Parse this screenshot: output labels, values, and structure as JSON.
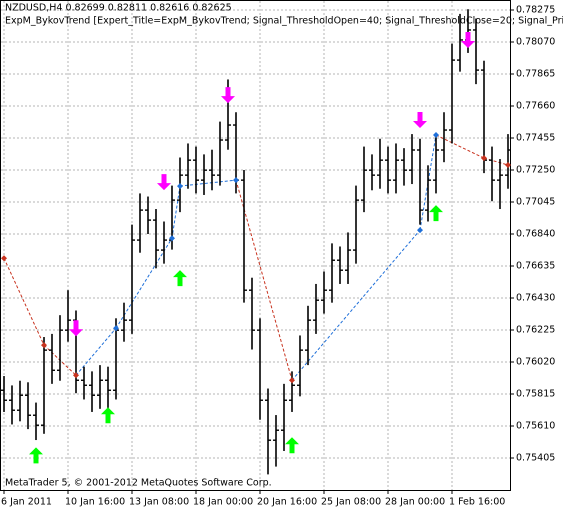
{
  "chart_data": {
    "type": "ohlc",
    "title": "NZDUSD,H4  0.82699 0.82811 0.82616 0.82625",
    "subtitle": "ExpM_BykovTrend [Expert_Title=ExpM_BykovTrend; Signal_ThresholdOpen=40; Signal_ThresholdClose=20; Signal_Pric",
    "footer": "MetaTrader 5, © 2001-2012 MetaQuotes Software Corp.",
    "categories": [
      "6 Jan 2011",
      null,
      null,
      null,
      null,
      null,
      null,
      null,
      "10 Jan 16:00",
      null,
      null,
      null,
      null,
      null,
      null,
      null,
      "13 Jan 08:00",
      null,
      null,
      null,
      null,
      null,
      null,
      null,
      "18 Jan 00:00",
      null,
      null,
      null,
      null,
      null,
      null,
      null,
      "20 Jan 16:00",
      null,
      null,
      null,
      null,
      null,
      null,
      null,
      "25 Jan 08:00",
      null,
      null,
      null,
      null,
      null,
      null,
      null,
      "28 Jan 00:00",
      null,
      null,
      null,
      null,
      null,
      null,
      null,
      "1 Feb 16:00",
      null,
      null,
      null,
      null,
      null,
      null,
      null
    ],
    "open": [
      0.75839,
      0.75775,
      0.75711,
      0.75807,
      0.75679,
      0.75615,
      0.76096,
      0.75967,
      0.76224,
      0.76288,
      0.75903,
      0.75871,
      0.75807,
      0.75903,
      0.75839,
      0.76224,
      0.76288,
      0.76801,
      0.76993,
      0.76929,
      0.76737,
      0.76801,
      0.77057,
      0.77217,
      0.77313,
      0.77185,
      0.77249,
      0.77217,
      0.77442,
      0.77538,
      0.77185,
      0.7648,
      0.76224,
      0.75775,
      0.75519,
      0.75583,
      0.75775,
      0.75871,
      0.76096,
      0.76288,
      0.76416,
      0.7648,
      0.76672,
      0.76608,
      0.76737,
      0.77057,
      0.77249,
      0.77217,
      0.77313,
      0.77185,
      0.77313,
      0.77249,
      0.77378,
      0.76993,
      0.77185,
      0.77378,
      0.77506,
      0.77954,
      0.78083,
      0.78147,
      0.7789,
      0.77313,
      0.77185,
      0.77217
    ],
    "high": [
      0.7593,
      0.7587,
      0.759,
      0.7589,
      0.7576,
      0.7618,
      0.762,
      0.7632,
      0.7648,
      0.7635,
      0.7599,
      0.7596,
      0.76,
      0.7599,
      0.763,
      0.764,
      0.769,
      0.771,
      0.7708,
      0.77,
      0.7692,
      0.7715,
      0.7733,
      0.7742,
      0.774,
      0.7735,
      0.7738,
      0.7756,
      0.7783,
      0.7762,
      0.7725,
      0.7656,
      0.763,
      0.7585,
      0.7568,
      0.7588,
      0.7596,
      0.7619,
      0.7638,
      0.7652,
      0.766,
      0.7678,
      0.7676,
      0.7685,
      0.7715,
      0.774,
      0.7735,
      0.7745,
      0.774,
      0.7742,
      0.7739,
      0.7748,
      0.7745,
      0.7728,
      0.7747,
      0.7762,
      0.7806,
      0.7825,
      0.7828,
      0.7822,
      0.7795,
      0.774,
      0.7732,
      0.7748
    ],
    "low": [
      0.757,
      0.7562,
      0.7564,
      0.7559,
      0.7552,
      0.7556,
      0.7588,
      0.759,
      0.7615,
      0.7582,
      0.7578,
      0.757,
      0.7572,
      0.7565,
      0.7578,
      0.7615,
      0.762,
      0.7672,
      0.7684,
      0.7662,
      0.7665,
      0.7674,
      0.7698,
      0.7713,
      0.771,
      0.7709,
      0.7712,
      0.7715,
      0.7738,
      0.771,
      0.764,
      0.761,
      0.7565,
      0.753,
      0.7535,
      0.7545,
      0.757,
      0.758,
      0.76,
      0.762,
      0.7633,
      0.764,
      0.7652,
      0.7652,
      0.7665,
      0.7698,
      0.7712,
      0.7713,
      0.771,
      0.771,
      0.7715,
      0.7716,
      0.769,
      0.7692,
      0.771,
      0.773,
      0.7742,
      0.7788,
      0.78,
      0.778,
      0.7723,
      0.7705,
      0.77,
      0.7713
    ],
    "close": [
      0.75775,
      0.75711,
      0.75807,
      0.75679,
      0.75615,
      0.76096,
      0.75967,
      0.76224,
      0.76288,
      0.75903,
      0.75871,
      0.75807,
      0.75903,
      0.75839,
      0.76224,
      0.76288,
      0.76801,
      0.76993,
      0.76929,
      0.76737,
      0.76801,
      0.77057,
      0.77217,
      0.77313,
      0.77185,
      0.77249,
      0.77217,
      0.77442,
      0.77538,
      0.77185,
      0.7648,
      0.76224,
      0.75775,
      0.75519,
      0.75583,
      0.75775,
      0.75871,
      0.76096,
      0.76288,
      0.76416,
      0.7648,
      0.76672,
      0.76608,
      0.76737,
      0.77057,
      0.77249,
      0.77217,
      0.77313,
      0.77185,
      0.77313,
      0.77249,
      0.77378,
      0.76993,
      0.77185,
      0.77378,
      0.77506,
      0.77954,
      0.78083,
      0.78147,
      0.7789,
      0.77313,
      0.77185,
      0.77217,
      0.77378
    ],
    "bar_color": "#000000",
    "buy_arrows": {
      "color": "#00ff00",
      "index": [
        4,
        13,
        22,
        36,
        54
      ],
      "values": [
        0.75422,
        0.75679,
        0.76557,
        0.75487,
        0.76974
      ]
    },
    "sell_arrows": {
      "color": "#ff00ff",
      "index": [
        9,
        20,
        28,
        52,
        58
      ],
      "values": [
        0.76236,
        0.77172,
        0.7773,
        0.7757,
        0.78083
      ]
    },
    "zigzag": {
      "up_color": "#1e6fd9",
      "down_color": "#c8321e",
      "index": [
        0,
        5,
        9,
        14,
        21,
        22,
        29,
        36,
        52,
        54,
        60,
        63
      ],
      "values": [
        0.76685,
        0.76128,
        0.75935,
        0.76236,
        0.76813,
        0.77147,
        0.77185,
        0.75903,
        0.76865,
        0.77474,
        0.77326,
        0.77282
      ]
    },
    "ylim": [
      0.752,
      0.78339
    ],
    "yticks": [
      0.78275,
      {
        "value": 0.7807,
        "label": "0.78070"
      },
      0.77865,
      {
        "value": 0.7766,
        "label": "0.77660"
      },
      0.77455,
      {
        "value": 0.7725,
        "label": "0.77250"
      },
      0.77045,
      {
        "value": 0.7684,
        "label": "0.76840"
      },
      0.76635,
      {
        "value": 0.7643,
        "label": "0.76430"
      },
      0.76225,
      {
        "value": 0.7602,
        "label": "0.76020"
      },
      0.75815,
      {
        "value": 0.7561,
        "label": "0.75610"
      },
      0.75405
    ],
    "grid": true
  }
}
